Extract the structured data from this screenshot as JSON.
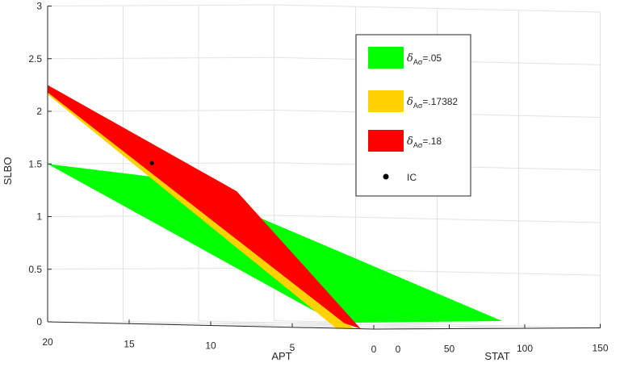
{
  "chart_data": {
    "type": "surface3d",
    "axes": {
      "z": {
        "label": "SLBO",
        "range": [
          0,
          3
        ],
        "ticks": [
          "0",
          "0.5",
          "1",
          "1.5",
          "2",
          "2.5",
          "3"
        ]
      },
      "x": {
        "label": "APT",
        "range": [
          20,
          0
        ],
        "ticks": [
          "20",
          "15",
          "10",
          "5",
          "0"
        ]
      },
      "y": {
        "label": "STAT",
        "range": [
          0,
          150
        ],
        "ticks": [
          "0",
          "50",
          "100",
          "150"
        ]
      }
    },
    "grid": true,
    "legend": {
      "placement": "top-right",
      "symbol": "δ",
      "subscript": "Aσ",
      "entries": [
        {
          "value": "=.05",
          "color": "#00ff00",
          "kind": "patch"
        },
        {
          "value": "=.17382",
          "color": "#ffd200",
          "kind": "patch"
        },
        {
          "value": "=.18",
          "color": "#ff0000",
          "kind": "patch"
        },
        {
          "text": "IC",
          "color": "#000000",
          "kind": "marker"
        }
      ]
    },
    "series": [
      {
        "value": ".05",
        "color": "#00ff00"
      },
      {
        "value": ".17382",
        "color": "#ffd200"
      },
      {
        "value": ".18",
        "color": "#ff0000"
      }
    ],
    "point": {
      "label": "IC",
      "z": 1.53
    }
  }
}
